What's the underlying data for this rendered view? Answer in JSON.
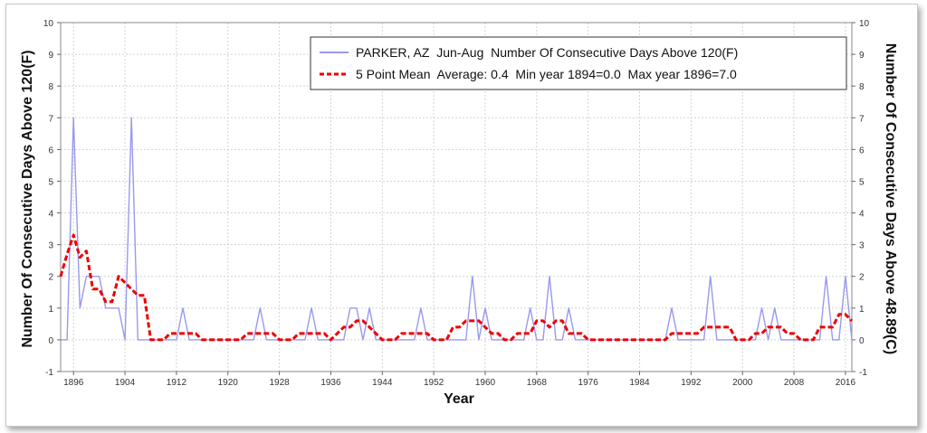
{
  "chart_data": {
    "type": "line",
    "xlabel": "Year",
    "ylabel_left": "Number Of Consecutive Days Above 120(F)",
    "ylabel_right": "Number Of Consecutive Days Above 48.89(C)",
    "ylim": [
      -1,
      10
    ],
    "yticks": [
      -1,
      0,
      1,
      2,
      3,
      4,
      5,
      6,
      7,
      8,
      9,
      10
    ],
    "xlim": [
      1894,
      2017
    ],
    "xticks": [
      1896,
      1904,
      1912,
      1920,
      1928,
      1936,
      1944,
      1952,
      1960,
      1968,
      1976,
      1984,
      1992,
      2000,
      2008,
      2016
    ],
    "grid": true,
    "legend_position": "top-right",
    "colors": {
      "series": "#9999ee",
      "mean": "#ee0000"
    },
    "series": [
      {
        "name": "PARKER, AZ  Jun-Aug  Number Of Consecutive Days Above 120(F)",
        "style": "solid",
        "x": [
          1894,
          1895,
          1896,
          1897,
          1898,
          1899,
          1900,
          1901,
          1902,
          1903,
          1904,
          1905,
          1906,
          1907,
          1908,
          1909,
          1910,
          1911,
          1912,
          1913,
          1914,
          1915,
          1916,
          1917,
          1918,
          1919,
          1920,
          1921,
          1922,
          1923,
          1924,
          1925,
          1926,
          1927,
          1928,
          1929,
          1930,
          1931,
          1932,
          1933,
          1934,
          1935,
          1936,
          1937,
          1938,
          1939,
          1940,
          1941,
          1942,
          1943,
          1944,
          1945,
          1946,
          1947,
          1948,
          1949,
          1950,
          1951,
          1952,
          1953,
          1954,
          1955,
          1956,
          1957,
          1958,
          1959,
          1960,
          1961,
          1962,
          1963,
          1964,
          1965,
          1966,
          1967,
          1968,
          1969,
          1970,
          1971,
          1972,
          1973,
          1974,
          1975,
          1976,
          1977,
          1978,
          1979,
          1980,
          1981,
          1982,
          1983,
          1984,
          1985,
          1986,
          1987,
          1988,
          1989,
          1990,
          1991,
          1992,
          1993,
          1994,
          1995,
          1996,
          1997,
          1998,
          1999,
          2000,
          2001,
          2002,
          2003,
          2004,
          2005,
          2006,
          2007,
          2008,
          2009,
          2010,
          2011,
          2012,
          2013,
          2014,
          2015,
          2016,
          2017
        ],
        "values": [
          0,
          0,
          7,
          1,
          2,
          2,
          2,
          1,
          1,
          1,
          0,
          7,
          0,
          0,
          0,
          0,
          0,
          0,
          0,
          1,
          0,
          0,
          0,
          0,
          0,
          0,
          0,
          0,
          0,
          0,
          0,
          1,
          0,
          0,
          0,
          0,
          0,
          0,
          0,
          1,
          0,
          0,
          0,
          0,
          0,
          1,
          1,
          0,
          1,
          0,
          0,
          0,
          0,
          0,
          0,
          0,
          1,
          0,
          0,
          0,
          0,
          0,
          0,
          0,
          2,
          0,
          1,
          0,
          0,
          0,
          0,
          0,
          0,
          1,
          0,
          0,
          2,
          0,
          0,
          1,
          0,
          0,
          0,
          0,
          0,
          0,
          0,
          0,
          0,
          0,
          0,
          0,
          0,
          0,
          0,
          1,
          0,
          0,
          0,
          0,
          0,
          2,
          0,
          0,
          0,
          0,
          0,
          0,
          0,
          1,
          0,
          1,
          0,
          0,
          0,
          0,
          0,
          0,
          0,
          2,
          0,
          0,
          2,
          0
        ]
      },
      {
        "name": "5 Point Mean  Average: 0.4  Min year 1894=0.0  Max year 1896=7.0",
        "style": "dashed",
        "x": [
          1894,
          1895,
          1896,
          1897,
          1898,
          1899,
          1900,
          1901,
          1902,
          1903,
          1904,
          1905,
          1906,
          1907,
          1908,
          1909,
          1910,
          1911,
          1912,
          1913,
          1914,
          1915,
          1916,
          1917,
          1918,
          1919,
          1920,
          1921,
          1922,
          1923,
          1924,
          1925,
          1926,
          1927,
          1928,
          1929,
          1930,
          1931,
          1932,
          1933,
          1934,
          1935,
          1936,
          1937,
          1938,
          1939,
          1940,
          1941,
          1942,
          1943,
          1944,
          1945,
          1946,
          1947,
          1948,
          1949,
          1950,
          1951,
          1952,
          1953,
          1954,
          1955,
          1956,
          1957,
          1958,
          1959,
          1960,
          1961,
          1962,
          1963,
          1964,
          1965,
          1966,
          1967,
          1968,
          1969,
          1970,
          1971,
          1972,
          1973,
          1974,
          1975,
          1976,
          1977,
          1978,
          1979,
          1980,
          1981,
          1982,
          1983,
          1984,
          1985,
          1986,
          1987,
          1988,
          1989,
          1990,
          1991,
          1992,
          1993,
          1994,
          1995,
          1996,
          1997,
          1998,
          1999,
          2000,
          2001,
          2002,
          2003,
          2004,
          2005,
          2006,
          2007,
          2008,
          2009,
          2010,
          2011,
          2012,
          2013,
          2014,
          2015,
          2016,
          2017
        ],
        "values": [
          2.0,
          2.7,
          3.3,
          2.6,
          2.8,
          1.6,
          1.6,
          1.2,
          1.2,
          2.0,
          1.8,
          1.6,
          1.4,
          1.4,
          0.0,
          0.0,
          0.0,
          0.2,
          0.2,
          0.2,
          0.2,
          0.2,
          0.0,
          0.0,
          0.0,
          0.0,
          0.0,
          0.0,
          0.0,
          0.2,
          0.2,
          0.2,
          0.2,
          0.2,
          0.0,
          0.0,
          0.0,
          0.2,
          0.2,
          0.2,
          0.2,
          0.2,
          0.0,
          0.2,
          0.4,
          0.4,
          0.6,
          0.6,
          0.4,
          0.2,
          0.0,
          0.0,
          0.0,
          0.2,
          0.2,
          0.2,
          0.2,
          0.2,
          0.0,
          0.0,
          0.0,
          0.4,
          0.4,
          0.6,
          0.6,
          0.6,
          0.4,
          0.2,
          0.2,
          0.0,
          0.0,
          0.2,
          0.2,
          0.2,
          0.6,
          0.6,
          0.4,
          0.6,
          0.6,
          0.2,
          0.2,
          0.2,
          0.0,
          0.0,
          0.0,
          0.0,
          0.0,
          0.0,
          0.0,
          0.0,
          0.0,
          0.0,
          0.0,
          0.0,
          0.0,
          0.2,
          0.2,
          0.2,
          0.2,
          0.2,
          0.4,
          0.4,
          0.4,
          0.4,
          0.4,
          0.0,
          0.0,
          0.0,
          0.2,
          0.2,
          0.4,
          0.4,
          0.4,
          0.2,
          0.2,
          0.0,
          0.0,
          0.0,
          0.4,
          0.4,
          0.4,
          0.8,
          0.8,
          0.6
        ]
      }
    ]
  }
}
